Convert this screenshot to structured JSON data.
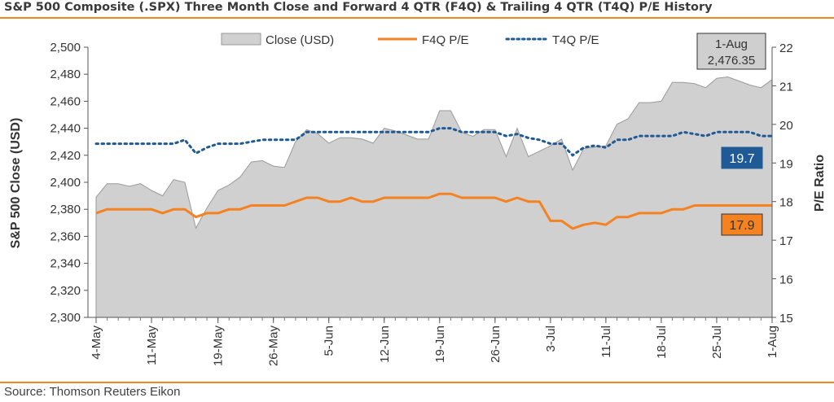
{
  "title": "S&P 500 Composite (.SPX) Three Month Close and Forward 4 QTR (F4Q) & Trailing 4 QTR (T4Q) P/E History",
  "source": "Source: Thomson Reuters Eikon",
  "colors": {
    "close_fill": "#d0d0d0",
    "close_stroke": "#9a9a9a",
    "f4q": "#f58220",
    "t4q": "#1f5a96",
    "rule": "#f08a1f"
  },
  "chart_data": {
    "type": "area",
    "ylabel_left": "S&P 500 Close (USD)",
    "ylabel_right": "P/E Ratio",
    "ylim_left": [
      2300,
      2500
    ],
    "yticks_left": [
      "2,300",
      "2,320",
      "2,340",
      "2,360",
      "2,380",
      "2,400",
      "2,420",
      "2,440",
      "2,460",
      "2,480",
      "2,500"
    ],
    "ylim_right": [
      15,
      22
    ],
    "yticks_right": [
      "15",
      "16",
      "17",
      "18",
      "19",
      "20",
      "21",
      "22"
    ],
    "xlim": [
      0,
      63
    ],
    "xticks": [
      {
        "label": "4-May",
        "i": 0
      },
      {
        "label": "11-May",
        "i": 5
      },
      {
        "label": "19-May",
        "i": 11
      },
      {
        "label": "26-May",
        "i": 16
      },
      {
        "label": "5-Jun",
        "i": 21
      },
      {
        "label": "12-Jun",
        "i": 26
      },
      {
        "label": "19-Jun",
        "i": 31
      },
      {
        "label": "26-Jun",
        "i": 36
      },
      {
        "label": "3-Jul",
        "i": 41
      },
      {
        "label": "11-Jul",
        "i": 46
      },
      {
        "label": "18-Jul",
        "i": 51
      },
      {
        "label": "25-Jul",
        "i": 56
      },
      {
        "label": "1-Aug",
        "i": 61
      }
    ],
    "legend": [
      "Close (USD)",
      "F4Q P/E",
      "T4Q P/E"
    ],
    "legend_position": "top",
    "series": [
      {
        "name": "Close (USD)",
        "kind": "area",
        "axis": "left",
        "values": [
          2389,
          2399,
          2399,
          2397,
          2399,
          2394,
          2390,
          2402,
          2400,
          2366,
          2381,
          2394,
          2398,
          2404,
          2415,
          2416,
          2412,
          2411,
          2430,
          2439,
          2436,
          2429,
          2433,
          2433,
          2432,
          2429,
          2440,
          2438,
          2435,
          2432,
          2432,
          2453,
          2453,
          2437,
          2434,
          2439,
          2439,
          2419,
          2440,
          2419,
          2423,
          2427,
          2432,
          2409,
          2425,
          2426,
          2427,
          2443,
          2447,
          2459,
          2459,
          2460,
          2474,
          2474,
          2473,
          2470,
          2477,
          2478,
          2475,
          2472,
          2470,
          2476
        ]
      },
      {
        "name": "F4Q P/E",
        "kind": "line",
        "axis": "right",
        "values": [
          17.7,
          17.8,
          17.8,
          17.8,
          17.8,
          17.8,
          17.7,
          17.8,
          17.8,
          17.6,
          17.7,
          17.7,
          17.8,
          17.8,
          17.9,
          17.9,
          17.9,
          17.9,
          18.0,
          18.1,
          18.1,
          18.0,
          18.0,
          18.1,
          18.0,
          18.0,
          18.1,
          18.1,
          18.1,
          18.1,
          18.1,
          18.2,
          18.2,
          18.1,
          18.1,
          18.1,
          18.1,
          18.0,
          18.1,
          18.0,
          18.0,
          17.5,
          17.5,
          17.3,
          17.4,
          17.45,
          17.4,
          17.6,
          17.6,
          17.7,
          17.7,
          17.7,
          17.8,
          17.8,
          17.9,
          17.9,
          17.9,
          17.9,
          17.9,
          17.9,
          17.9,
          17.9
        ]
      },
      {
        "name": "T4Q P/E",
        "kind": "dotted",
        "axis": "right",
        "values": [
          19.5,
          19.5,
          19.5,
          19.5,
          19.5,
          19.5,
          19.5,
          19.5,
          19.6,
          19.25,
          19.4,
          19.5,
          19.5,
          19.5,
          19.55,
          19.6,
          19.6,
          19.6,
          19.6,
          19.8,
          19.8,
          19.8,
          19.8,
          19.8,
          19.8,
          19.8,
          19.8,
          19.8,
          19.8,
          19.8,
          19.8,
          19.9,
          19.9,
          19.8,
          19.8,
          19.8,
          19.8,
          19.7,
          19.75,
          19.65,
          19.6,
          19.5,
          19.5,
          19.2,
          19.4,
          19.45,
          19.4,
          19.6,
          19.6,
          19.7,
          19.7,
          19.7,
          19.7,
          19.8,
          19.75,
          19.7,
          19.8,
          19.8,
          19.8,
          19.8,
          19.7,
          19.7
        ]
      }
    ],
    "annotations": [
      {
        "text": [
          "1-Aug",
          "2,476.35"
        ],
        "target": "Close (USD)"
      },
      {
        "text": "19.7",
        "target": "T4Q P/E"
      },
      {
        "text": "17.9",
        "target": "F4Q P/E"
      }
    ]
  }
}
